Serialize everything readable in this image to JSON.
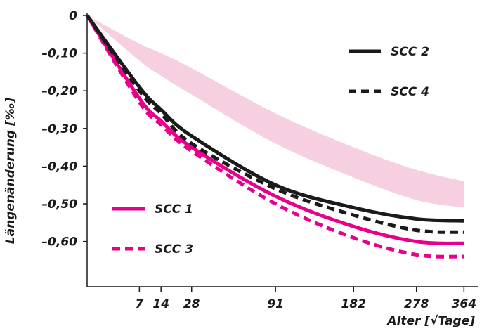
{
  "chart_data": {
    "type": "line",
    "xlabel": "Alter [√Tage]",
    "ylabel": "Längenänderung [‰]",
    "x_scale": "sqrt",
    "xlim": [
      0,
      380
    ],
    "ylim": [
      -0.72,
      0.0
    ],
    "x_ticks": [
      7,
      14,
      28,
      91,
      182,
      278,
      364
    ],
    "x_tick_labels": [
      "7",
      "14",
      "28",
      "91",
      "182",
      "278",
      "364"
    ],
    "y_ticks": [
      0,
      -0.1,
      -0.2,
      -0.3,
      -0.4,
      -0.5,
      -0.6
    ],
    "y_tick_labels": [
      "0",
      "–0,10",
      "–0,20",
      "–0,30",
      "–0,40",
      "–0,50",
      "–0,60"
    ],
    "grid": false,
    "series": [
      {
        "name": "SCC 1",
        "color": "#e6008a",
        "dash": "solid",
        "x": [
          0,
          7,
          14,
          28,
          91,
          182,
          278,
          364
        ],
        "y": [
          0,
          -0.22,
          -0.28,
          -0.35,
          -0.48,
          -0.56,
          -0.6,
          -0.605
        ]
      },
      {
        "name": "SCC 2",
        "color": "#1a1a1a",
        "dash": "solid",
        "x": [
          0,
          7,
          14,
          28,
          91,
          182,
          278,
          364
        ],
        "y": [
          0,
          -0.19,
          -0.25,
          -0.32,
          -0.45,
          -0.51,
          -0.54,
          -0.545
        ]
      },
      {
        "name": "SCC 3",
        "color": "#e6008a",
        "dash": "dashed",
        "x": [
          0,
          7,
          14,
          28,
          91,
          182,
          278,
          364
        ],
        "y": [
          0,
          -0.23,
          -0.29,
          -0.36,
          -0.5,
          -0.59,
          -0.635,
          -0.64
        ]
      },
      {
        "name": "SCC 4",
        "color": "#1a1a1a",
        "dash": "dashed",
        "x": [
          0,
          7,
          14,
          28,
          91,
          182,
          278,
          364
        ],
        "y": [
          0,
          -0.2,
          -0.26,
          -0.34,
          -0.46,
          -0.53,
          -0.57,
          -0.575
        ]
      }
    ],
    "band": {
      "color": "#f6cfe0",
      "x": [
        0,
        7,
        14,
        28,
        91,
        182,
        278,
        364
      ],
      "upper": [
        0,
        -0.075,
        -0.1,
        -0.14,
        -0.26,
        -0.35,
        -0.41,
        -0.44
      ],
      "lower": [
        0,
        -0.12,
        -0.16,
        -0.21,
        -0.34,
        -0.43,
        -0.49,
        -0.51
      ]
    },
    "legend": [
      {
        "label": "SCC 2",
        "color": "#1a1a1a",
        "dash": "solid",
        "placement": "top-right"
      },
      {
        "label": "SCC 4",
        "color": "#1a1a1a",
        "dash": "dashed",
        "placement": "top-right"
      },
      {
        "label": "SCC 1",
        "color": "#e6008a",
        "dash": "solid",
        "placement": "bottom-left"
      },
      {
        "label": "SCC 3",
        "color": "#e6008a",
        "dash": "dashed",
        "placement": "bottom-left"
      }
    ]
  }
}
